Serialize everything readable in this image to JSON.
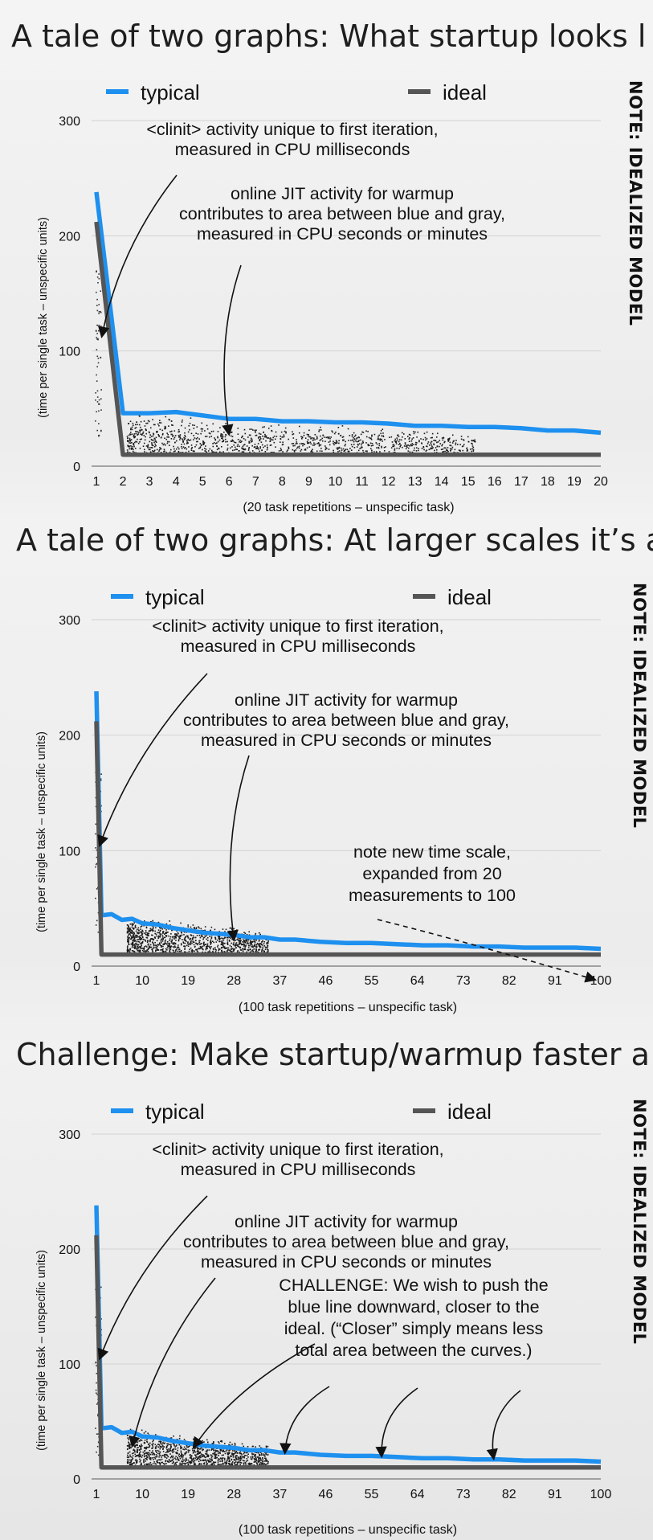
{
  "chart_data": [
    {
      "type": "line",
      "title": "A tale of two graphs: What startup looks l",
      "note": "NOTE: IDEALIZED MODEL",
      "xlabel": "(20 task repetitions – unspecific task)",
      "ylabel": "(time per single task – unspecific units)",
      "xlim": [
        1,
        20
      ],
      "ylim": [
        0,
        300
      ],
      "yticks": [
        "0",
        "100",
        "200",
        "300"
      ],
      "xticks": [
        "1",
        "2",
        "3",
        "4",
        "5",
        "6",
        "7",
        "8",
        "9",
        "10",
        "11",
        "12",
        "13",
        "14",
        "15",
        "16",
        "17",
        "18",
        "19",
        "20"
      ],
      "legend_position": "top",
      "series": [
        {
          "name": "typical",
          "color": "#1e90ef",
          "x": [
            1,
            2,
            3,
            4,
            5,
            6,
            7,
            8,
            9,
            10,
            11,
            12,
            13,
            14,
            15,
            16,
            17,
            18,
            19,
            20
          ],
          "y": [
            238,
            46,
            46,
            47,
            44,
            41,
            41,
            39,
            39,
            38,
            38,
            37,
            35,
            35,
            34,
            34,
            33,
            31,
            31,
            29
          ]
        },
        {
          "name": "ideal",
          "color": "#555555",
          "x": [
            1,
            2,
            20
          ],
          "y": [
            212,
            10,
            10
          ]
        }
      ],
      "annotations": [
        {
          "lines": [
            "<clinit> activity unique to first iteration,",
            "measured in CPU milliseconds"
          ],
          "arrow_to": [
            1.2,
            112
          ]
        },
        {
          "lines": [
            "online JIT activity for warmup",
            "contributes to area between blue and gray,",
            "measured in CPU seconds or minutes"
          ],
          "arrow_to": [
            6,
            27
          ]
        }
      ]
    },
    {
      "type": "line",
      "title": "A tale of two graphs: At larger scales it’s a",
      "note": "NOTE: IDEALIZED MODEL",
      "xlabel": "(100 task repetitions – unspecific task)",
      "ylabel": "(time per single task – unspecific units)",
      "xlim": [
        1,
        100
      ],
      "ylim": [
        0,
        300
      ],
      "yticks": [
        "0",
        "100",
        "200",
        "300"
      ],
      "xticks": [
        "1",
        "10",
        "19",
        "28",
        "37",
        "46",
        "55",
        "64",
        "73",
        "82",
        "91",
        "100"
      ],
      "legend_position": "top",
      "series": [
        {
          "name": "typical",
          "color": "#1e90ef",
          "x": [
            1,
            2,
            4,
            6,
            8,
            10,
            13,
            16,
            19,
            22,
            25,
            28,
            31,
            34,
            37,
            40,
            45,
            50,
            55,
            60,
            65,
            70,
            75,
            80,
            85,
            90,
            95,
            100
          ],
          "y": [
            238,
            44,
            45,
            40,
            41,
            37,
            36,
            33,
            31,
            29,
            28,
            27,
            25,
            25,
            23,
            23,
            21,
            20,
            20,
            19,
            18,
            18,
            17,
            17,
            16,
            16,
            16,
            15
          ]
        },
        {
          "name": "ideal",
          "color": "#555555",
          "x": [
            1,
            2,
            100
          ],
          "y": [
            212,
            10,
            10
          ]
        }
      ],
      "annotations": [
        {
          "lines": [
            "<clinit> activity unique to first iteration,",
            "measured in CPU milliseconds"
          ],
          "arrow_to": [
            1.6,
            104
          ]
        },
        {
          "lines": [
            "online JIT activity for warmup",
            "contributes to area between blue and gray,",
            "measured in CPU seconds or minutes"
          ],
          "arrow_to": [
            28,
            22
          ]
        },
        {
          "lines": [
            "note new time scale,",
            "expanded from 20",
            "measurements to 100"
          ],
          "arrow_to": [
            99,
            -12
          ]
        }
      ]
    },
    {
      "type": "line",
      "title": "Challenge: Make startup/warmup faster a",
      "note": "NOTE: IDEALIZED MODEL",
      "xlabel": "(100 task repetitions – unspecific task)",
      "ylabel": "(time per single task – unspecific units)",
      "xlim": [
        1,
        100
      ],
      "ylim": [
        0,
        300
      ],
      "yticks": [
        "0",
        "100",
        "200",
        "300"
      ],
      "xticks": [
        "1",
        "10",
        "19",
        "28",
        "37",
        "46",
        "55",
        "64",
        "73",
        "82",
        "91",
        "100"
      ],
      "legend_position": "top",
      "series": [
        {
          "name": "typical",
          "color": "#1e90ef",
          "x": [
            1,
            2,
            4,
            6,
            8,
            10,
            13,
            16,
            19,
            22,
            25,
            28,
            31,
            34,
            37,
            40,
            45,
            50,
            55,
            60,
            65,
            70,
            75,
            80,
            85,
            90,
            95,
            100
          ],
          "y": [
            238,
            44,
            45,
            40,
            41,
            37,
            36,
            33,
            31,
            29,
            28,
            27,
            25,
            25,
            23,
            23,
            21,
            20,
            20,
            19,
            18,
            18,
            17,
            17,
            16,
            16,
            16,
            15
          ]
        },
        {
          "name": "ideal",
          "color": "#555555",
          "x": [
            1,
            2,
            100
          ],
          "y": [
            212,
            10,
            10
          ]
        }
      ],
      "annotations": [
        {
          "lines": [
            "<clinit> activity unique to first iteration,",
            "measured in CPU milliseconds"
          ],
          "arrow_to": [
            1.6,
            104
          ]
        },
        {
          "lines": [
            "online JIT activity for warmup",
            "contributes to area between blue and gray,",
            "measured in CPU seconds or minutes"
          ],
          "arrow_to": [
            8,
            28
          ]
        },
        {
          "lines": [
            "CHALLENGE:  We wish to push the",
            "blue line downward, closer to the",
            "ideal.  (“Closer” simply means less",
            "total area between the curves.)"
          ],
          "arrow_to": [
            [
              20,
              27
            ],
            [
              38,
              22
            ],
            [
              57,
              19
            ],
            [
              79,
              17
            ]
          ]
        }
      ]
    }
  ]
}
